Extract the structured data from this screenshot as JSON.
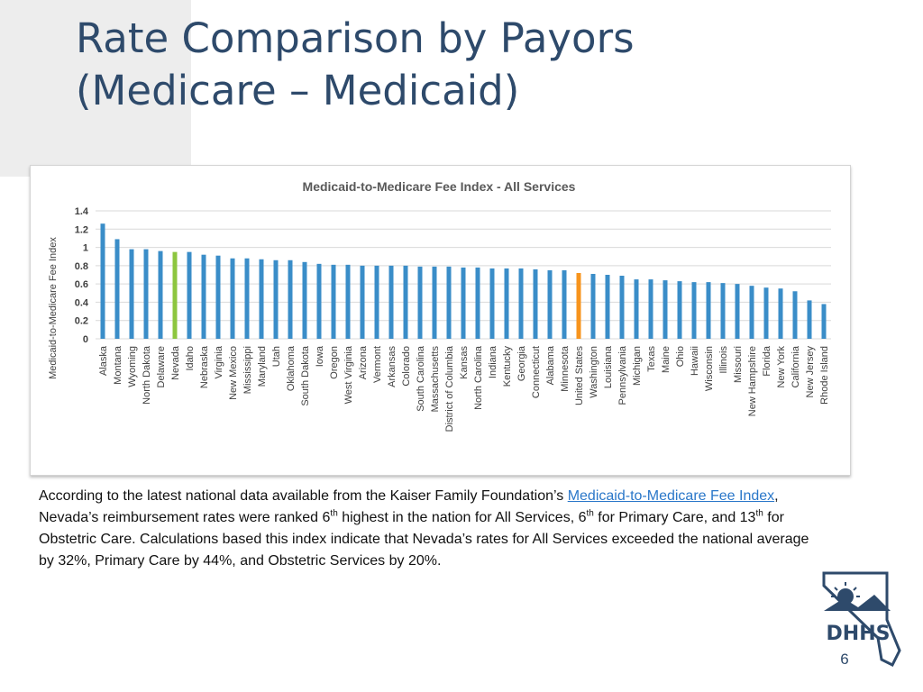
{
  "slide": {
    "title_line1": "Rate Comparison by Payors",
    "title_line2": "(Medicare – Medicaid)",
    "page_number": "6"
  },
  "body": {
    "text1": "According to the latest national data available from the Kaiser Family Foundation’s ",
    "link": "Medicaid-to-Medicare Fee Index",
    "text2": ", Nevada’s reimbursement rates were ranked 6",
    "sup1": "th",
    "text3": " highest in the nation for All Services, 6",
    "sup2": "th",
    "text4": " for Primary Care, and 13",
    "sup3": "th",
    "text5": " for Obstetric Care. Calculations based this index indicate that Nevada’s rates for All Services exceeded the national average by 32%, Primary Care by 44%, and Obstetric Services by 20%."
  },
  "chart_data": {
    "type": "bar",
    "title": "Medicaid-to-Medicare Fee Index - All Services",
    "xlabel": "",
    "ylabel": "Medicaid-to-Medicare Fee Index",
    "ylim": [
      0,
      1.4
    ],
    "yticks": [
      "0",
      "0.2",
      "0.4",
      "0.6",
      "0.8",
      "1",
      "1.2",
      "1.4"
    ],
    "grid": true,
    "categories": [
      "Alaska",
      "Montana",
      "Wyoming",
      "North Dakota",
      "Delaware",
      "Nevada",
      "Idaho",
      "Nebraska",
      "Virginia",
      "New Mexico",
      "Mississippi",
      "Maryland",
      "Utah",
      "Oklahoma",
      "South Dakota",
      "Iowa",
      "Oregon",
      "West Virginia",
      "Arizona",
      "Vermont",
      "Arkansas",
      "Colorado",
      "South Carolina",
      "Massachusetts",
      "District of Columbia",
      "Kansas",
      "North Carolina",
      "Indiana",
      "Kentucky",
      "Georgia",
      "Connecticut",
      "Alabama",
      "Minnesota",
      "United States",
      "Washington",
      "Louisiana",
      "Pennsylvania",
      "Michigan",
      "Texas",
      "Maine",
      "Ohio",
      "Hawaii",
      "Wisconsin",
      "Illinois",
      "Missouri",
      "New Hampshire",
      "Florida",
      "New York",
      "California",
      "New Jersey",
      "Rhode Island"
    ],
    "values": [
      1.26,
      1.09,
      0.98,
      0.98,
      0.96,
      0.95,
      0.95,
      0.92,
      0.91,
      0.88,
      0.88,
      0.87,
      0.86,
      0.86,
      0.84,
      0.82,
      0.81,
      0.81,
      0.8,
      0.8,
      0.8,
      0.8,
      0.79,
      0.79,
      0.79,
      0.78,
      0.78,
      0.77,
      0.77,
      0.77,
      0.76,
      0.75,
      0.75,
      0.72,
      0.71,
      0.7,
      0.69,
      0.65,
      0.65,
      0.64,
      0.63,
      0.62,
      0.62,
      0.61,
      0.6,
      0.58,
      0.56,
      0.55,
      0.52,
      0.42,
      0.38
    ],
    "highlights": {
      "Nevada": "#8dc63f",
      "United States": "#f7941d"
    },
    "bar_color": "#3a8dc8"
  },
  "colors": {
    "title": "#2e4a6b",
    "link": "#2a77c9",
    "grid": "#d9d9d9",
    "logo_blue": "#2e4a6b"
  },
  "logo": {
    "name": "DHHS",
    "letters": "DHHS"
  }
}
